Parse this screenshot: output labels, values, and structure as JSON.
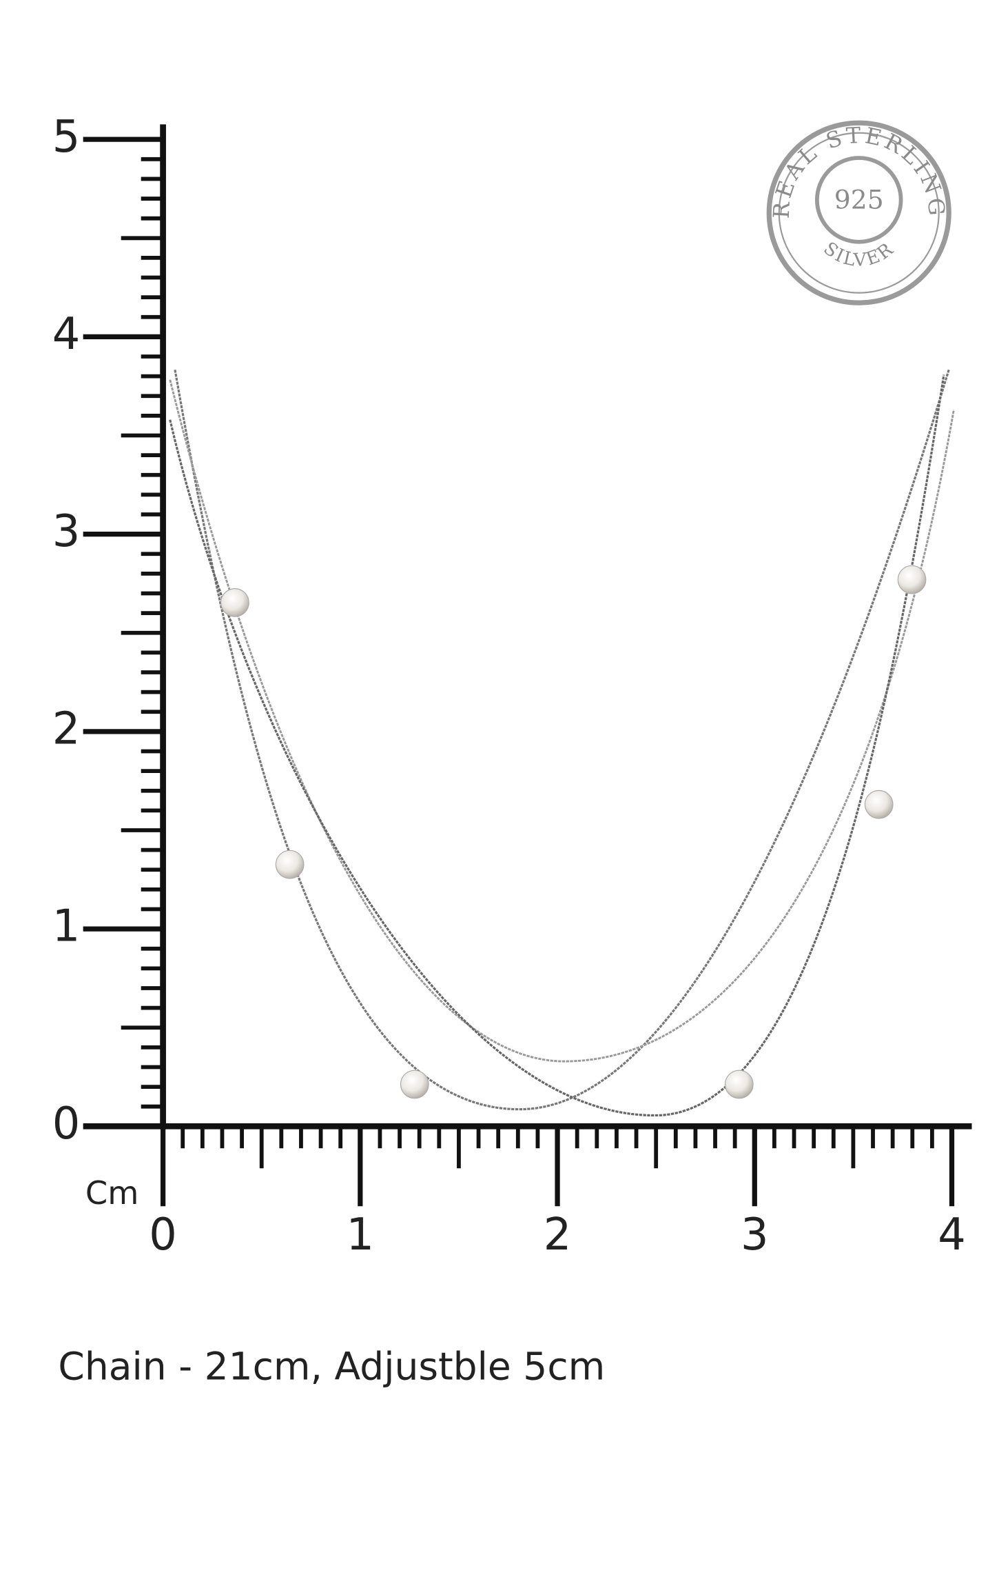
{
  "ruler": {
    "vertical_labels": [
      0,
      1,
      2,
      3,
      4,
      5
    ],
    "horizontal_labels": [
      0,
      1,
      2,
      3,
      4
    ],
    "unit": "Cm"
  },
  "stamp": {
    "top_text": "REAL STERLING",
    "center_text": "925",
    "bottom_text": "SILVER"
  },
  "caption": "Chain - 21cm, Adjustble 5cm"
}
